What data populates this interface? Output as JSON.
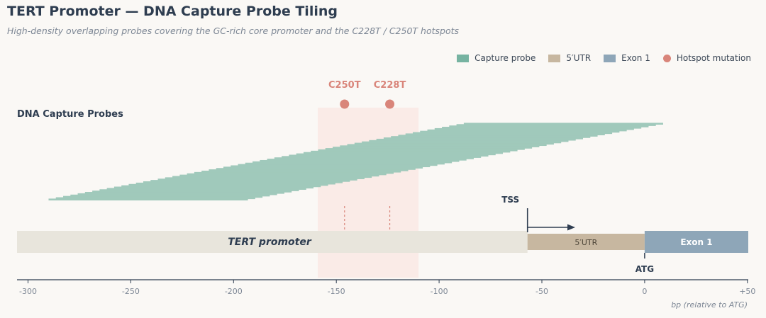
{
  "title": "TERT Promoter — DNA Capture Probe Tiling",
  "subtitle": "High-density overlapping probes covering the GC-rich core promoter and the C228T / C250T hotspots",
  "legend": [
    {
      "label": "Capture probe",
      "color": "#76b3a1",
      "shape": "rect"
    },
    {
      "label": "5′UTR",
      "color": "#c7b7a0",
      "shape": "rect"
    },
    {
      "label": "Exon 1",
      "color": "#8ea6b8",
      "shape": "rect"
    },
    {
      "label": "Hotspot mutation",
      "color": "#d9857a",
      "shape": "dot"
    }
  ],
  "probes_label": "DNA Capture Probes",
  "probes": {
    "count": 58,
    "length_bp": 97,
    "first_start_bp": -290,
    "last_start_bp": -88,
    "color": "#a0c9bb"
  },
  "hotspots": [
    {
      "label": "C250T",
      "position_bp": -146
    },
    {
      "label": "C228T",
      "position_bp": -124
    }
  ],
  "hotspot_region_bp": [
    -159,
    -110
  ],
  "tracks": {
    "promoter": {
      "label": "TERT promoter",
      "start_bp": -300,
      "end_bp": -57
    },
    "utr": {
      "label": "5′UTR",
      "start_bp": -57,
      "end_bp": 0
    },
    "exon": {
      "label": "Exon 1",
      "start_bp": 0,
      "end_bp": 54
    }
  },
  "tss": {
    "label": "TSS",
    "position_bp": -57
  },
  "atg": {
    "label": "ATG",
    "position_bp": 0
  },
  "axis": {
    "range_bp": [
      -304,
      54
    ],
    "ticks": [
      -300,
      -250,
      -200,
      -150,
      -100,
      -50,
      0,
      50
    ],
    "tick_labels": [
      "-300",
      "-250",
      "-200",
      "-150",
      "-100",
      "-50",
      "0",
      "+50"
    ],
    "label": "bp  (relative to ATG)"
  }
}
